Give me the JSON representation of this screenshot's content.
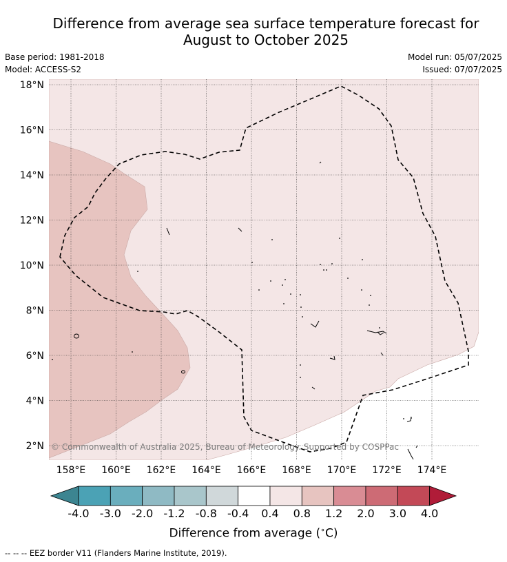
{
  "title_line1": "Difference from average sea surface temperature forecast for",
  "title_line2": "August to October 2025",
  "meta": {
    "base_period": "Base period: 1981-2018",
    "model": "Model: ACCESS-S2",
    "model_run": "Model run: 05/07/2025",
    "issued": "Issued: 07/07/2025"
  },
  "map": {
    "lat_labels": [
      "18°N",
      "16°N",
      "14°N",
      "12°N",
      "10°N",
      "8°N",
      "6°N",
      "4°N",
      "2°N"
    ],
    "lon_labels": [
      "158°E",
      "160°E",
      "162°E",
      "164°E",
      "166°E",
      "168°E",
      "170°E",
      "172°E",
      "174°E"
    ],
    "copyright": "© Commonwealth of Australia 2025, Bureau of Meteorology. Supported by COSPPac",
    "anomaly_colors": {
      "0.4_to_0.8": "#f4e6e6",
      "0.8_to_1.2": "#e7c4c0"
    }
  },
  "colorbar": {
    "ticks": [
      "-4.0",
      "-3.0",
      "-2.0",
      "-1.2",
      "-0.8",
      "-0.4",
      "0.4",
      "0.8",
      "1.2",
      "2.0",
      "3.0",
      "4.0"
    ],
    "colors": [
      "#4ba2b5",
      "#6aaebd",
      "#8fbac4",
      "#a9c6cb",
      "#d0d8da",
      "#ffffff",
      "#f4e6e6",
      "#e7c4c0",
      "#d98c94",
      "#cd6b75",
      "#c34957"
    ],
    "under_color": "#3c8591",
    "over_color": "#b01c38",
    "label": "Difference from average (°C)"
  },
  "footnote": "--  --  -- EEZ border V11 (Flanders Marine Institute, 2019)."
}
